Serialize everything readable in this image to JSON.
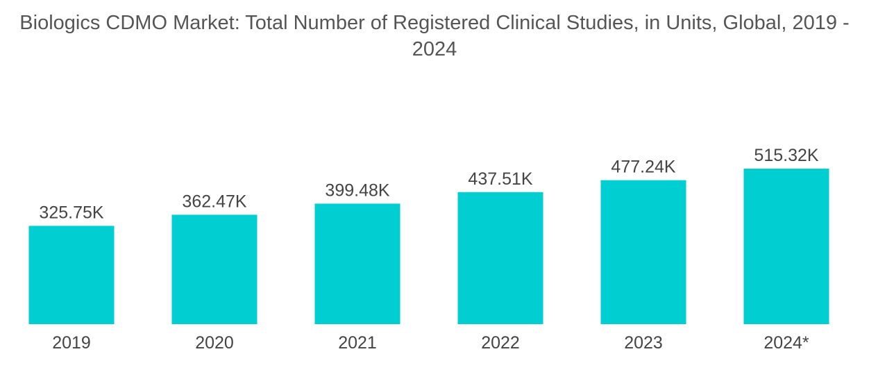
{
  "chart_data": {
    "type": "bar",
    "title": "Biologics CDMO Market: Total Number of Registered Clinical Studies, in Units, Global, 2019 - 2024",
    "categories": [
      "2019",
      "2020",
      "2021",
      "2022",
      "2023",
      "2024*"
    ],
    "values": [
      325.75,
      362.47,
      399.48,
      437.51,
      477.24,
      515.32
    ],
    "value_labels": [
      "325.75K",
      "362.47K",
      "399.48K",
      "437.51K",
      "477.24K",
      "515.32K"
    ],
    "xlabel": "",
    "ylabel": "",
    "grid": false,
    "legend": "none",
    "colors": {
      "bar": "#00CED1",
      "text": "#444444",
      "title": "#555555"
    }
  }
}
